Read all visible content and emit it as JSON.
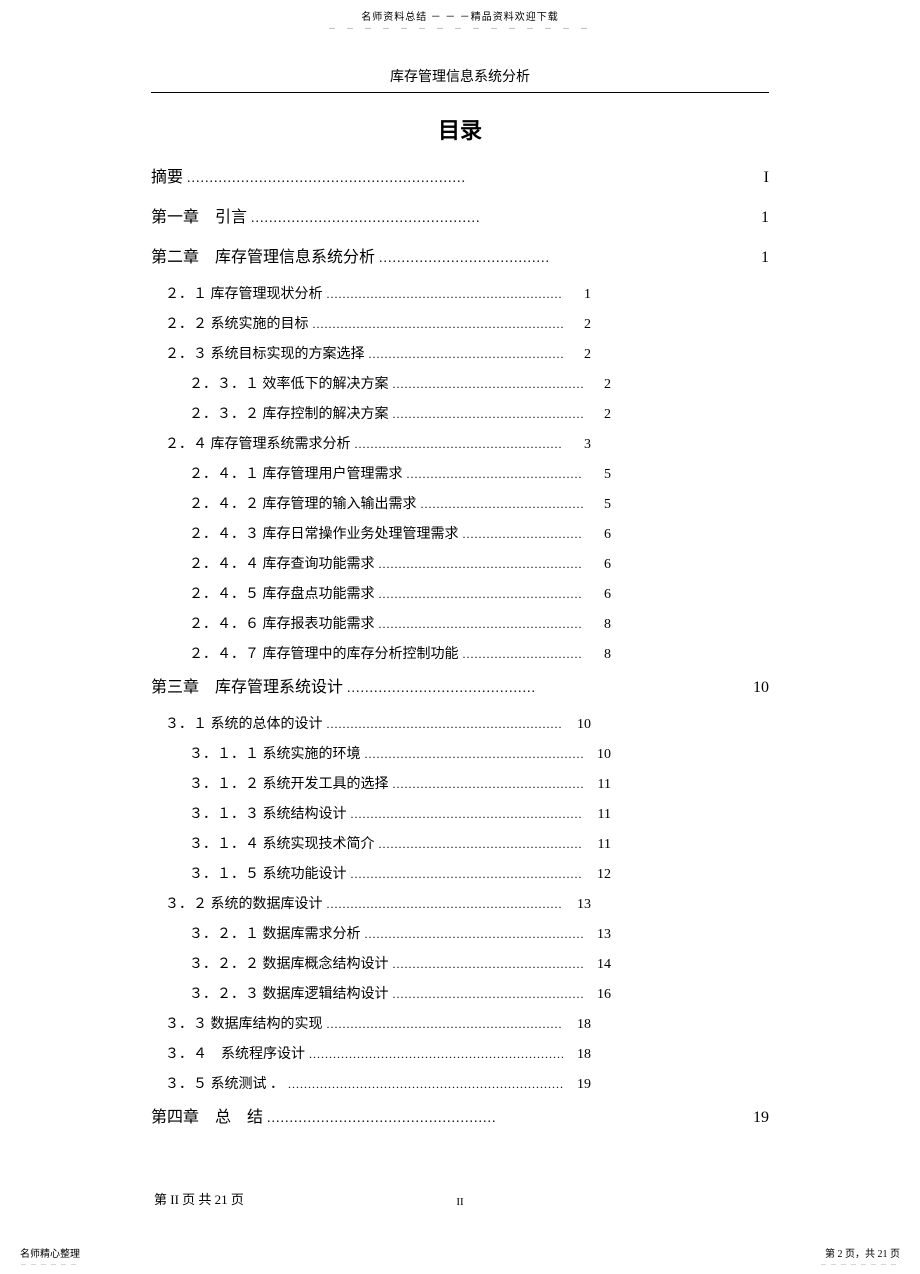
{
  "header": {
    "top_line": "名师资料总结 － － －精品资料欢迎下载",
    "doc_title": "库存管理信息系统分析"
  },
  "toc_heading": "目录",
  "major_entries": [
    {
      "label": "摘要",
      "page": "I"
    },
    {
      "label": "第一章　引言",
      "page": "1"
    },
    {
      "label": "第二章　库存管理信息系统分析",
      "page": "1"
    },
    {
      "label": "第三章　库存管理系统设计",
      "page": "10"
    },
    {
      "label": "第四章　总　结",
      "page": "19"
    }
  ],
  "ch2_subs": [
    {
      "level": 1,
      "label": "２．１ 库存管理现状分析",
      "page": "1"
    },
    {
      "level": 1,
      "label": "２．２ 系统实施的目标",
      "page": "2"
    },
    {
      "level": 1,
      "label": "２．３ 系统目标实现的方案选择",
      "page": "2"
    },
    {
      "level": 2,
      "label": "２．３．１ 效率低下的解决方案",
      "page": "2"
    },
    {
      "level": 2,
      "label": "２．３．２ 库存控制的解决方案",
      "page": "2"
    },
    {
      "level": 1,
      "label": "２．４ 库存管理系统需求分析",
      "page": "3"
    },
    {
      "level": 2,
      "label": "２．４．１ 库存管理用户管理需求",
      "page": "5"
    },
    {
      "level": 2,
      "label": "２．４．２ 库存管理的输入输出需求",
      "page": "5"
    },
    {
      "level": 2,
      "label": "２．４．３ 库存日常操作业务处理管理需求",
      "page": "6"
    },
    {
      "level": 2,
      "label": "２．４．４ 库存查询功能需求",
      "page": "6"
    },
    {
      "level": 2,
      "label": "２．４．５ 库存盘点功能需求",
      "page": "6"
    },
    {
      "level": 2,
      "label": "２．４．６ 库存报表功能需求",
      "page": "8"
    },
    {
      "level": 2,
      "label": "２．４．７ 库存管理中的库存分析控制功能",
      "page": "8"
    }
  ],
  "ch3_subs": [
    {
      "level": 1,
      "label": "３．１ 系统的总体的设计",
      "page": "10"
    },
    {
      "level": 2,
      "label": "３．１．１ 系统实施的环境",
      "page": "10"
    },
    {
      "level": 2,
      "label": "３．１．２ 系统开发工具的选择",
      "page": "11"
    },
    {
      "level": 2,
      "label": "３．１．３ 系统结构设计",
      "page": "11"
    },
    {
      "level": 2,
      "label": "３．１．４ 系统实现技术简介",
      "page": "11"
    },
    {
      "level": 2,
      "label": "３．１．５ 系统功能设计",
      "page": "12"
    },
    {
      "level": 1,
      "label": "３．２ 系统的数据库设计",
      "page": "13"
    },
    {
      "level": 2,
      "label": "３．２．１ 数据库需求分析",
      "page": "13"
    },
    {
      "level": 2,
      "label": "３．２．２ 数据库概念结构设计",
      "page": "14"
    },
    {
      "level": 2,
      "label": "３．２．３ 数据库逻辑结构设计",
      "page": "16"
    },
    {
      "level": 1,
      "label": "３．３ 数据库结构的实现",
      "page": "18"
    },
    {
      "level": 1,
      "label": "３．４　系统程序设计",
      "page": "18"
    },
    {
      "level": 1,
      "label": "３．５ 系统测试 ．",
      "page": "19"
    }
  ],
  "footer": {
    "left": "第 II 页 共 21 页",
    "center": "II",
    "bottom_left": "名师精心整理",
    "bottom_right": "第 2 页，共 21 页"
  }
}
